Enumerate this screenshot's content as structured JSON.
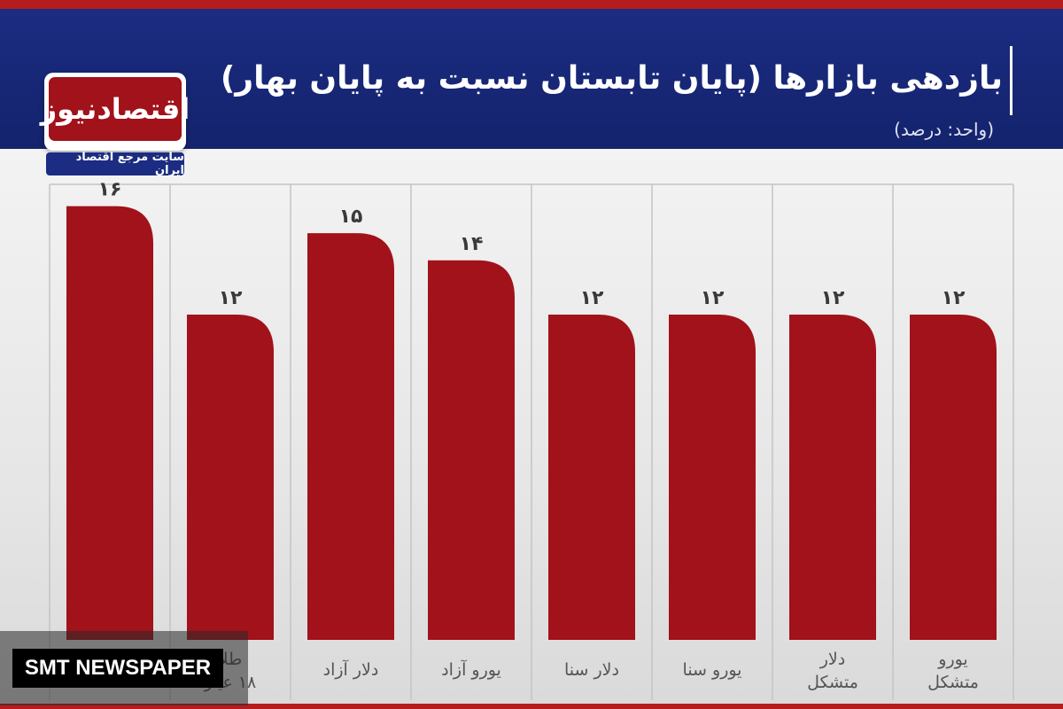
{
  "header": {
    "title": "بازدهی بازارها (پایان تابستان نسبت به پایان بهار)",
    "subtitle": "(واحد: درصد)"
  },
  "logo": {
    "name": "اقتصادنیوز",
    "tagline": "سایت مرجع اقتصاد ایران"
  },
  "watermark": {
    "text": "SMT NEWSPAPER"
  },
  "colors": {
    "header_bg": "#1b2c82",
    "bar": "#a1121b",
    "accent_strip": "#b71c1c"
  },
  "chart_data": {
    "type": "bar",
    "title": "بازدهی بازارها (پایان تابستان نسبت به پایان بهار)",
    "subtitle": "(واحد: درصد)",
    "categories": [
      [
        "",
        ""
      ],
      [
        "طلا",
        "۱۸ عیار"
      ],
      [
        "دلار آزاد"
      ],
      [
        "یورو آزاد"
      ],
      [
        "دلار سنا"
      ],
      [
        "یورو سنا"
      ],
      [
        "دلار",
        "متشکل"
      ],
      [
        "یورو",
        "متشکل"
      ]
    ],
    "values": [
      16,
      12,
      15,
      14,
      12,
      12,
      12,
      12
    ],
    "value_labels": [
      "۱۶",
      "۱۲",
      "۱۵",
      "۱۴",
      "۱۲",
      "۱۲",
      "۱۲",
      "۱۲"
    ],
    "ylim": [
      0,
      17
    ],
    "grid": "vertical separators"
  }
}
